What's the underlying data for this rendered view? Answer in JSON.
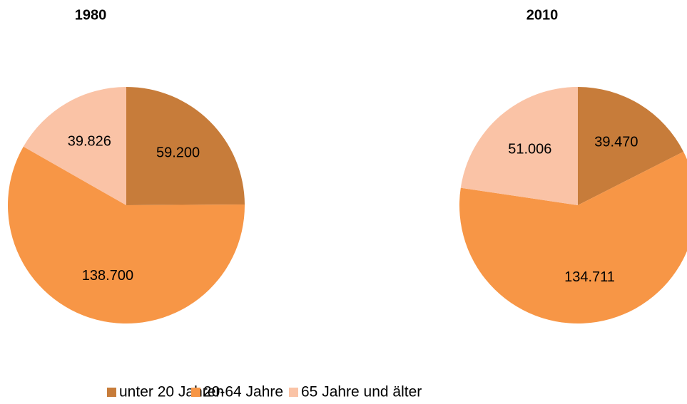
{
  "chart_data": [
    {
      "type": "pie",
      "title": "1980",
      "values": [
        59200,
        138700,
        39826
      ],
      "value_labels": [
        "59.200",
        "138.700",
        "39.826"
      ]
    },
    {
      "type": "pie",
      "title": "2010",
      "values": [
        39470,
        134711,
        51006
      ],
      "value_labels": [
        "39.470",
        "134.711",
        "51.006"
      ]
    }
  ],
  "legend": {
    "categories": [
      "unter 20 Jahren",
      "20-64 Jahre",
      "65 Jahre und älter"
    ],
    "colors": [
      "#c77c3a",
      "#f79646",
      "#fac3a6"
    ]
  }
}
